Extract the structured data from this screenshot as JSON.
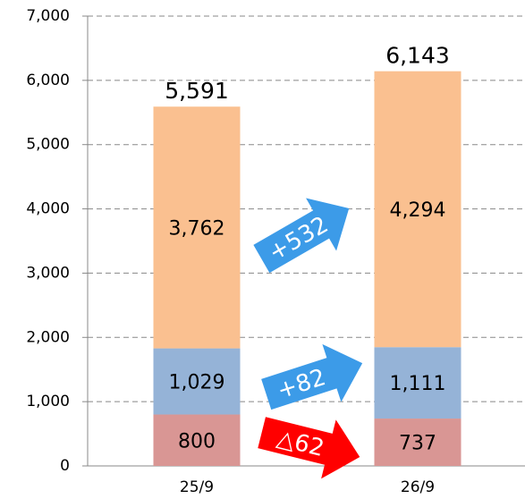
{
  "chart_data": {
    "type": "stacked_bar",
    "categories": [
      "25/9",
      "26/9"
    ],
    "series": [
      {
        "color": "#d99694",
        "values": [
          800,
          737
        ]
      },
      {
        "color": "#95b3d7",
        "values": [
          1029,
          1111
        ],
        "value_labels": [
          "1,029",
          "1,111"
        ]
      },
      {
        "color": "#fac090",
        "values": [
          3762,
          4294
        ],
        "value_labels": [
          "3,762",
          "4,294"
        ]
      }
    ],
    "totals": {
      "values": [
        5591,
        6143
      ],
      "value_labels": [
        "5,591",
        "6,143"
      ]
    },
    "annotations": [
      "+532",
      "+82",
      "△62"
    ],
    "ylim": [
      0,
      7000
    ],
    "yticks": [
      0,
      {
        "value": 1000,
        "label": "1,000"
      },
      {
        "value": 2000,
        "label": "2,000"
      },
      {
        "value": 3000,
        "label": "3,000"
      },
      {
        "value": 4000,
        "label": "4,000"
      },
      {
        "value": 5000,
        "label": "5,000"
      },
      {
        "value": 6000,
        "label": "6,000"
      },
      {
        "value": 7000,
        "label": "7,000"
      }
    ],
    "grid": true
  }
}
